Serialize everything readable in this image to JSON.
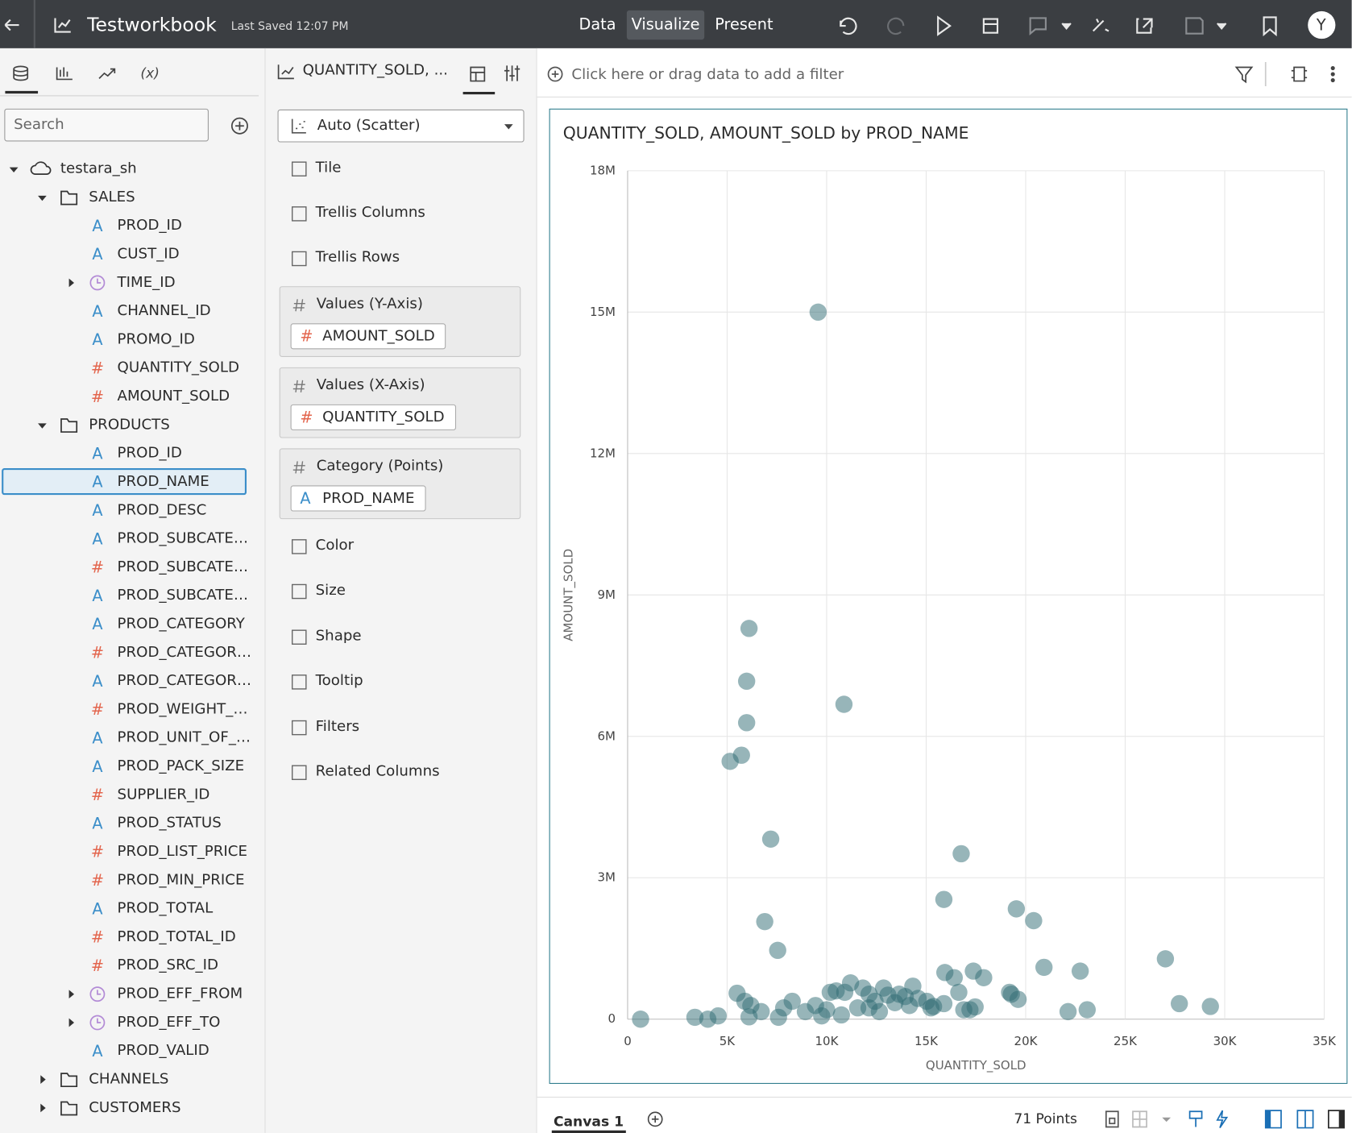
{
  "header": {
    "title": "Testworkbook",
    "last_saved": "Last Saved 12:07 PM",
    "tabs": [
      "Data",
      "Visualize",
      "Present"
    ],
    "active_tab": 1,
    "avatar": "Y"
  },
  "data_panel": {
    "variables_tab": "(x)",
    "search_placeholder": "Search",
    "tree": [
      {
        "label": "testara_sh",
        "icon": "cloud",
        "expander": "open",
        "children": [
          {
            "label": "SALES",
            "icon": "folder",
            "expander": "open",
            "children": [
              {
                "label": "PROD_ID",
                "icon": "A"
              },
              {
                "label": "CUST_ID",
                "icon": "A"
              },
              {
                "label": "TIME_ID",
                "icon": "time",
                "expander": "closed"
              },
              {
                "label": "CHANNEL_ID",
                "icon": "A"
              },
              {
                "label": "PROMO_ID",
                "icon": "A"
              },
              {
                "label": "QUANTITY_SOLD",
                "icon": "#"
              },
              {
                "label": "AMOUNT_SOLD",
                "icon": "#"
              }
            ]
          },
          {
            "label": "PRODUCTS",
            "icon": "folder",
            "expander": "open",
            "children": [
              {
                "label": "PROD_ID",
                "icon": "A"
              },
              {
                "label": "PROD_NAME",
                "icon": "A",
                "selected": true
              },
              {
                "label": "PROD_DESC",
                "icon": "A"
              },
              {
                "label": "PROD_SUBCATE…",
                "icon": "A"
              },
              {
                "label": "PROD_SUBCATE…",
                "icon": "#"
              },
              {
                "label": "PROD_SUBCATE…",
                "icon": "A"
              },
              {
                "label": "PROD_CATEGORY",
                "icon": "A"
              },
              {
                "label": "PROD_CATEGOR…",
                "icon": "#"
              },
              {
                "label": "PROD_CATEGOR…",
                "icon": "A"
              },
              {
                "label": "PROD_WEIGHT_…",
                "icon": "#"
              },
              {
                "label": "PROD_UNIT_OF_…",
                "icon": "A"
              },
              {
                "label": "PROD_PACK_SIZE",
                "icon": "A"
              },
              {
                "label": "SUPPLIER_ID",
                "icon": "#"
              },
              {
                "label": "PROD_STATUS",
                "icon": "A"
              },
              {
                "label": "PROD_LIST_PRICE",
                "icon": "#"
              },
              {
                "label": "PROD_MIN_PRICE",
                "icon": "#"
              },
              {
                "label": "PROD_TOTAL",
                "icon": "A"
              },
              {
                "label": "PROD_TOTAL_ID",
                "icon": "#"
              },
              {
                "label": "PROD_SRC_ID",
                "icon": "#"
              },
              {
                "label": "PROD_EFF_FROM",
                "icon": "time",
                "expander": "closed"
              },
              {
                "label": "PROD_EFF_TO",
                "icon": "time",
                "expander": "closed"
              },
              {
                "label": "PROD_VALID",
                "icon": "A"
              }
            ]
          },
          {
            "label": "CHANNELS",
            "icon": "folder",
            "expander": "closed"
          },
          {
            "label": "CUSTOMERS",
            "icon": "folder",
            "expander": "closed"
          }
        ]
      }
    ]
  },
  "grammar_panel": {
    "header": "QUANTITY_SOLD, ...",
    "chart_type": "Auto (Scatter)",
    "top_items": [
      "Tile",
      "Trellis Columns",
      "Trellis Rows"
    ],
    "drop_zones": [
      {
        "label": "Values (Y-Axis)",
        "field": "AMOUNT_SOLD",
        "icon": "#"
      },
      {
        "label": "Values (X-Axis)",
        "field": "QUANTITY_SOLD",
        "icon": "#"
      },
      {
        "label": "Category (Points)",
        "field": "PROD_NAME",
        "icon": "A"
      }
    ],
    "bottom_items": [
      "Color",
      "Size",
      "Shape",
      "Tooltip",
      "Filters",
      "Related Columns"
    ]
  },
  "filter_bar": {
    "placeholder": "Click here or drag data to add a filter"
  },
  "chart_data": {
    "type": "scatter",
    "title": "QUANTITY_SOLD, AMOUNT_SOLD by PROD_NAME",
    "x_label": "QUANTITY_SOLD",
    "y_label": "AMOUNT_SOLD",
    "color": "#2f6b73",
    "grid": true,
    "xlim": [
      0,
      35000
    ],
    "ylim": [
      0,
      18000000
    ],
    "xticks": [
      0,
      {
        "value": 5000,
        "label": "5K"
      },
      {
        "value": 10000,
        "label": "10K"
      },
      {
        "value": 15000,
        "label": "15K"
      },
      {
        "value": 20000,
        "label": "20K"
      },
      {
        "value": 25000,
        "label": "25K"
      },
      {
        "value": 30000,
        "label": "30K"
      },
      {
        "value": 35000,
        "label": "35K"
      }
    ],
    "yticks": [
      0,
      {
        "value": 3000000,
        "label": "3M"
      },
      {
        "value": 6000000,
        "label": "6M"
      },
      {
        "value": 9000000,
        "label": "9M"
      },
      {
        "value": 12000000,
        "label": "12M"
      },
      {
        "value": 15000000,
        "label": "15M"
      },
      {
        "value": 18000000,
        "label": "18M"
      }
    ],
    "x": [
      650,
      9570,
      6100,
      5980,
      5980,
      5720,
      5150,
      10870,
      7190,
      16760,
      15890,
      19530,
      20400,
      6890,
      7540,
      27020,
      20920,
      22740,
      15940,
      17370,
      16410,
      17890,
      5500,
      11200,
      14330,
      27720,
      29280,
      23090,
      22130,
      19190,
      19620,
      17200,
      16640,
      15890,
      15240,
      15030,
      14590,
      14160,
      13080,
      12860,
      12430,
      12650,
      12130,
      11560,
      10910,
      10480,
      10180,
      10740,
      10000,
      9440,
      8930,
      8270,
      7840,
      7580,
      6710,
      6190,
      6100,
      4550,
      4030,
      3380,
      13640,
      13430,
      12130,
      19280,
      9750,
      13950,
      15370,
      11820,
      5890,
      17460,
      16890
    ],
    "values": [
      0,
      15000000,
      8290000,
      7170000,
      6290000,
      5600000,
      5470000,
      6680000,
      3820000,
      3510000,
      2540000,
      2340000,
      2090000,
      2070000,
      1460000,
      1280000,
      1100000,
      1020000,
      990000,
      1020000,
      880000,
      880000,
      550000,
      770000,
      700000,
      330000,
      270000,
      200000,
      160000,
      570000,
      420000,
      200000,
      570000,
      330000,
      240000,
      380000,
      440000,
      290000,
      510000,
      660000,
      380000,
      160000,
      530000,
      240000,
      570000,
      600000,
      570000,
      90000,
      200000,
      290000,
      160000,
      380000,
      240000,
      40000,
      160000,
      290000,
      50000,
      70000,
      0,
      40000,
      530000,
      350000,
      240000,
      530000,
      70000,
      480000,
      270000,
      660000,
      380000,
      260000,
      200000
    ]
  },
  "footer": {
    "canvas": "Canvas 1",
    "points": "71 Points"
  }
}
